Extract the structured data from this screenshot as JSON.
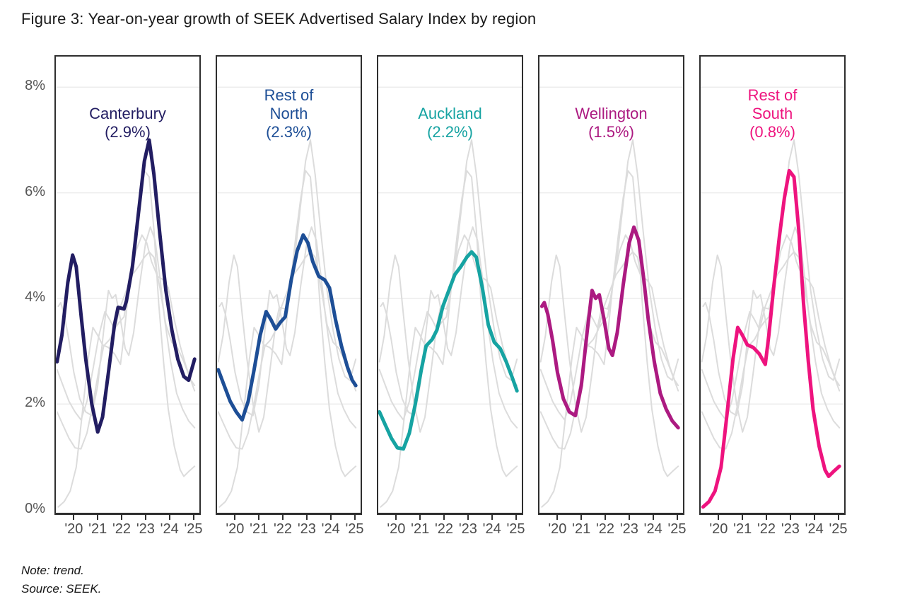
{
  "title": "Figure 3: Year-on-year growth of SEEK Advertised Salary Index by region",
  "note": "Note: trend.",
  "source": "Source: SEEK.",
  "colors": {
    "grid": "#ececec",
    "background_series": "#dcdcdc",
    "panel_border": "#2e2e2e",
    "axis_text": "#4b4b4b",
    "y_axis_text": "#555555",
    "title_text": "#1a1a1a"
  },
  "y_axis": {
    "tick_labels": [
      "0%",
      "2%",
      "4%",
      "6%",
      "8%"
    ],
    "tick_values": [
      0,
      2,
      4,
      6,
      8
    ]
  },
  "x_axis": {
    "tick_labels": [
      "'20",
      "'21",
      "'22",
      "'23",
      "'24",
      "'25"
    ],
    "tick_values": [
      2020,
      2021,
      2022,
      2023,
      2024,
      2025
    ]
  },
  "chart_data": {
    "type": "line",
    "title": "Year-on-year growth of SEEK Advertised Salary Index by region",
    "x_range": [
      2019.25,
      2025.25
    ],
    "y_range": [
      -0.06,
      8.58
    ],
    "grid_values": [
      2,
      4,
      6,
      8
    ],
    "grid_on": true,
    "legend_position": "none",
    "panels": [
      {
        "series": "Canterbury",
        "label_lines": [
          "Canterbury"
        ],
        "latest_label": "(2.9%)"
      },
      {
        "series": "Rest of North",
        "label_lines": [
          "Rest of",
          "North"
        ],
        "latest_label": "(2.3%)"
      },
      {
        "series": "Auckland",
        "label_lines": [
          "Auckland"
        ],
        "latest_label": "(2.2%)"
      },
      {
        "series": "Wellington",
        "label_lines": [
          "Wellington"
        ],
        "latest_label": "(1.5%)"
      },
      {
        "series": "Rest of South",
        "label_lines": [
          "Rest of",
          "South"
        ],
        "latest_label": "(0.8%)"
      }
    ],
    "series": [
      {
        "name": "Canterbury",
        "color": "#221d62",
        "latest_value": 2.9,
        "points": [
          [
            2019.3,
            2.8
          ],
          [
            2019.5,
            3.3
          ],
          [
            2019.75,
            4.3
          ],
          [
            2019.95,
            4.82
          ],
          [
            2020.1,
            4.6
          ],
          [
            2020.3,
            3.7
          ],
          [
            2020.5,
            2.85
          ],
          [
            2020.75,
            2.0
          ],
          [
            2021.0,
            1.47
          ],
          [
            2021.2,
            1.75
          ],
          [
            2021.45,
            2.6
          ],
          [
            2021.7,
            3.5
          ],
          [
            2021.85,
            3.83
          ],
          [
            2022.1,
            3.8
          ],
          [
            2022.2,
            3.95
          ],
          [
            2022.45,
            4.6
          ],
          [
            2022.7,
            5.6
          ],
          [
            2022.95,
            6.6
          ],
          [
            2023.15,
            7.0
          ],
          [
            2023.35,
            6.35
          ],
          [
            2023.6,
            5.2
          ],
          [
            2023.85,
            4.15
          ],
          [
            2024.1,
            3.4
          ],
          [
            2024.35,
            2.85
          ],
          [
            2024.6,
            2.52
          ],
          [
            2024.8,
            2.45
          ],
          [
            2025.05,
            2.85
          ]
        ]
      },
      {
        "name": "Rest of North",
        "color": "#1d4e96",
        "latest_value": 2.3,
        "points": [
          [
            2019.3,
            2.65
          ],
          [
            2019.55,
            2.35
          ],
          [
            2019.8,
            2.05
          ],
          [
            2020.05,
            1.85
          ],
          [
            2020.3,
            1.7
          ],
          [
            2020.55,
            2.05
          ],
          [
            2020.8,
            2.65
          ],
          [
            2021.05,
            3.3
          ],
          [
            2021.3,
            3.75
          ],
          [
            2021.5,
            3.6
          ],
          [
            2021.7,
            3.42
          ],
          [
            2021.9,
            3.55
          ],
          [
            2022.1,
            3.65
          ],
          [
            2022.35,
            4.35
          ],
          [
            2022.6,
            4.9
          ],
          [
            2022.85,
            5.2
          ],
          [
            2023.05,
            5.05
          ],
          [
            2023.25,
            4.7
          ],
          [
            2023.5,
            4.42
          ],
          [
            2023.75,
            4.35
          ],
          [
            2023.95,
            4.2
          ],
          [
            2024.2,
            3.6
          ],
          [
            2024.45,
            3.1
          ],
          [
            2024.7,
            2.7
          ],
          [
            2024.9,
            2.45
          ],
          [
            2025.05,
            2.35
          ]
        ]
      },
      {
        "name": "Auckland",
        "color": "#16a3a2",
        "latest_value": 2.2,
        "points": [
          [
            2019.3,
            1.85
          ],
          [
            2019.55,
            1.6
          ],
          [
            2019.8,
            1.35
          ],
          [
            2020.05,
            1.17
          ],
          [
            2020.3,
            1.15
          ],
          [
            2020.55,
            1.45
          ],
          [
            2020.8,
            2.0
          ],
          [
            2021.05,
            2.65
          ],
          [
            2021.25,
            3.1
          ],
          [
            2021.5,
            3.22
          ],
          [
            2021.7,
            3.4
          ],
          [
            2021.95,
            3.85
          ],
          [
            2022.2,
            4.15
          ],
          [
            2022.45,
            4.45
          ],
          [
            2022.7,
            4.6
          ],
          [
            2022.95,
            4.78
          ],
          [
            2023.15,
            4.88
          ],
          [
            2023.35,
            4.78
          ],
          [
            2023.6,
            4.2
          ],
          [
            2023.85,
            3.5
          ],
          [
            2024.1,
            3.17
          ],
          [
            2024.35,
            3.05
          ],
          [
            2024.6,
            2.8
          ],
          [
            2024.85,
            2.5
          ],
          [
            2025.05,
            2.25
          ]
        ]
      },
      {
        "name": "Wellington",
        "color": "#ac1a81",
        "latest_value": 1.5,
        "points": [
          [
            2019.35,
            3.85
          ],
          [
            2019.45,
            3.92
          ],
          [
            2019.6,
            3.7
          ],
          [
            2019.8,
            3.2
          ],
          [
            2020.0,
            2.6
          ],
          [
            2020.25,
            2.1
          ],
          [
            2020.5,
            1.85
          ],
          [
            2020.75,
            1.78
          ],
          [
            2021.0,
            2.35
          ],
          [
            2021.25,
            3.4
          ],
          [
            2021.45,
            4.15
          ],
          [
            2021.6,
            4.0
          ],
          [
            2021.75,
            4.07
          ],
          [
            2021.95,
            3.6
          ],
          [
            2022.15,
            3.05
          ],
          [
            2022.3,
            2.92
          ],
          [
            2022.5,
            3.35
          ],
          [
            2022.75,
            4.25
          ],
          [
            2023.0,
            5.05
          ],
          [
            2023.2,
            5.35
          ],
          [
            2023.4,
            5.1
          ],
          [
            2023.6,
            4.4
          ],
          [
            2023.8,
            3.6
          ],
          [
            2024.05,
            2.8
          ],
          [
            2024.3,
            2.2
          ],
          [
            2024.55,
            1.9
          ],
          [
            2024.8,
            1.68
          ],
          [
            2025.05,
            1.55
          ]
        ]
      },
      {
        "name": "Rest of South",
        "color": "#ee137e",
        "latest_value": 0.8,
        "points": [
          [
            2019.35,
            0.05
          ],
          [
            2019.6,
            0.15
          ],
          [
            2019.85,
            0.35
          ],
          [
            2020.1,
            0.8
          ],
          [
            2020.35,
            1.8
          ],
          [
            2020.6,
            2.85
          ],
          [
            2020.8,
            3.45
          ],
          [
            2021.0,
            3.3
          ],
          [
            2021.2,
            3.12
          ],
          [
            2021.45,
            3.07
          ],
          [
            2021.7,
            2.95
          ],
          [
            2021.95,
            2.75
          ],
          [
            2022.1,
            3.3
          ],
          [
            2022.3,
            4.2
          ],
          [
            2022.55,
            5.2
          ],
          [
            2022.75,
            5.9
          ],
          [
            2022.95,
            6.42
          ],
          [
            2023.15,
            6.3
          ],
          [
            2023.35,
            5.3
          ],
          [
            2023.55,
            3.9
          ],
          [
            2023.75,
            2.8
          ],
          [
            2023.95,
            1.9
          ],
          [
            2024.2,
            1.2
          ],
          [
            2024.45,
            0.75
          ],
          [
            2024.6,
            0.63
          ],
          [
            2024.8,
            0.72
          ],
          [
            2025.05,
            0.82
          ]
        ]
      }
    ]
  }
}
